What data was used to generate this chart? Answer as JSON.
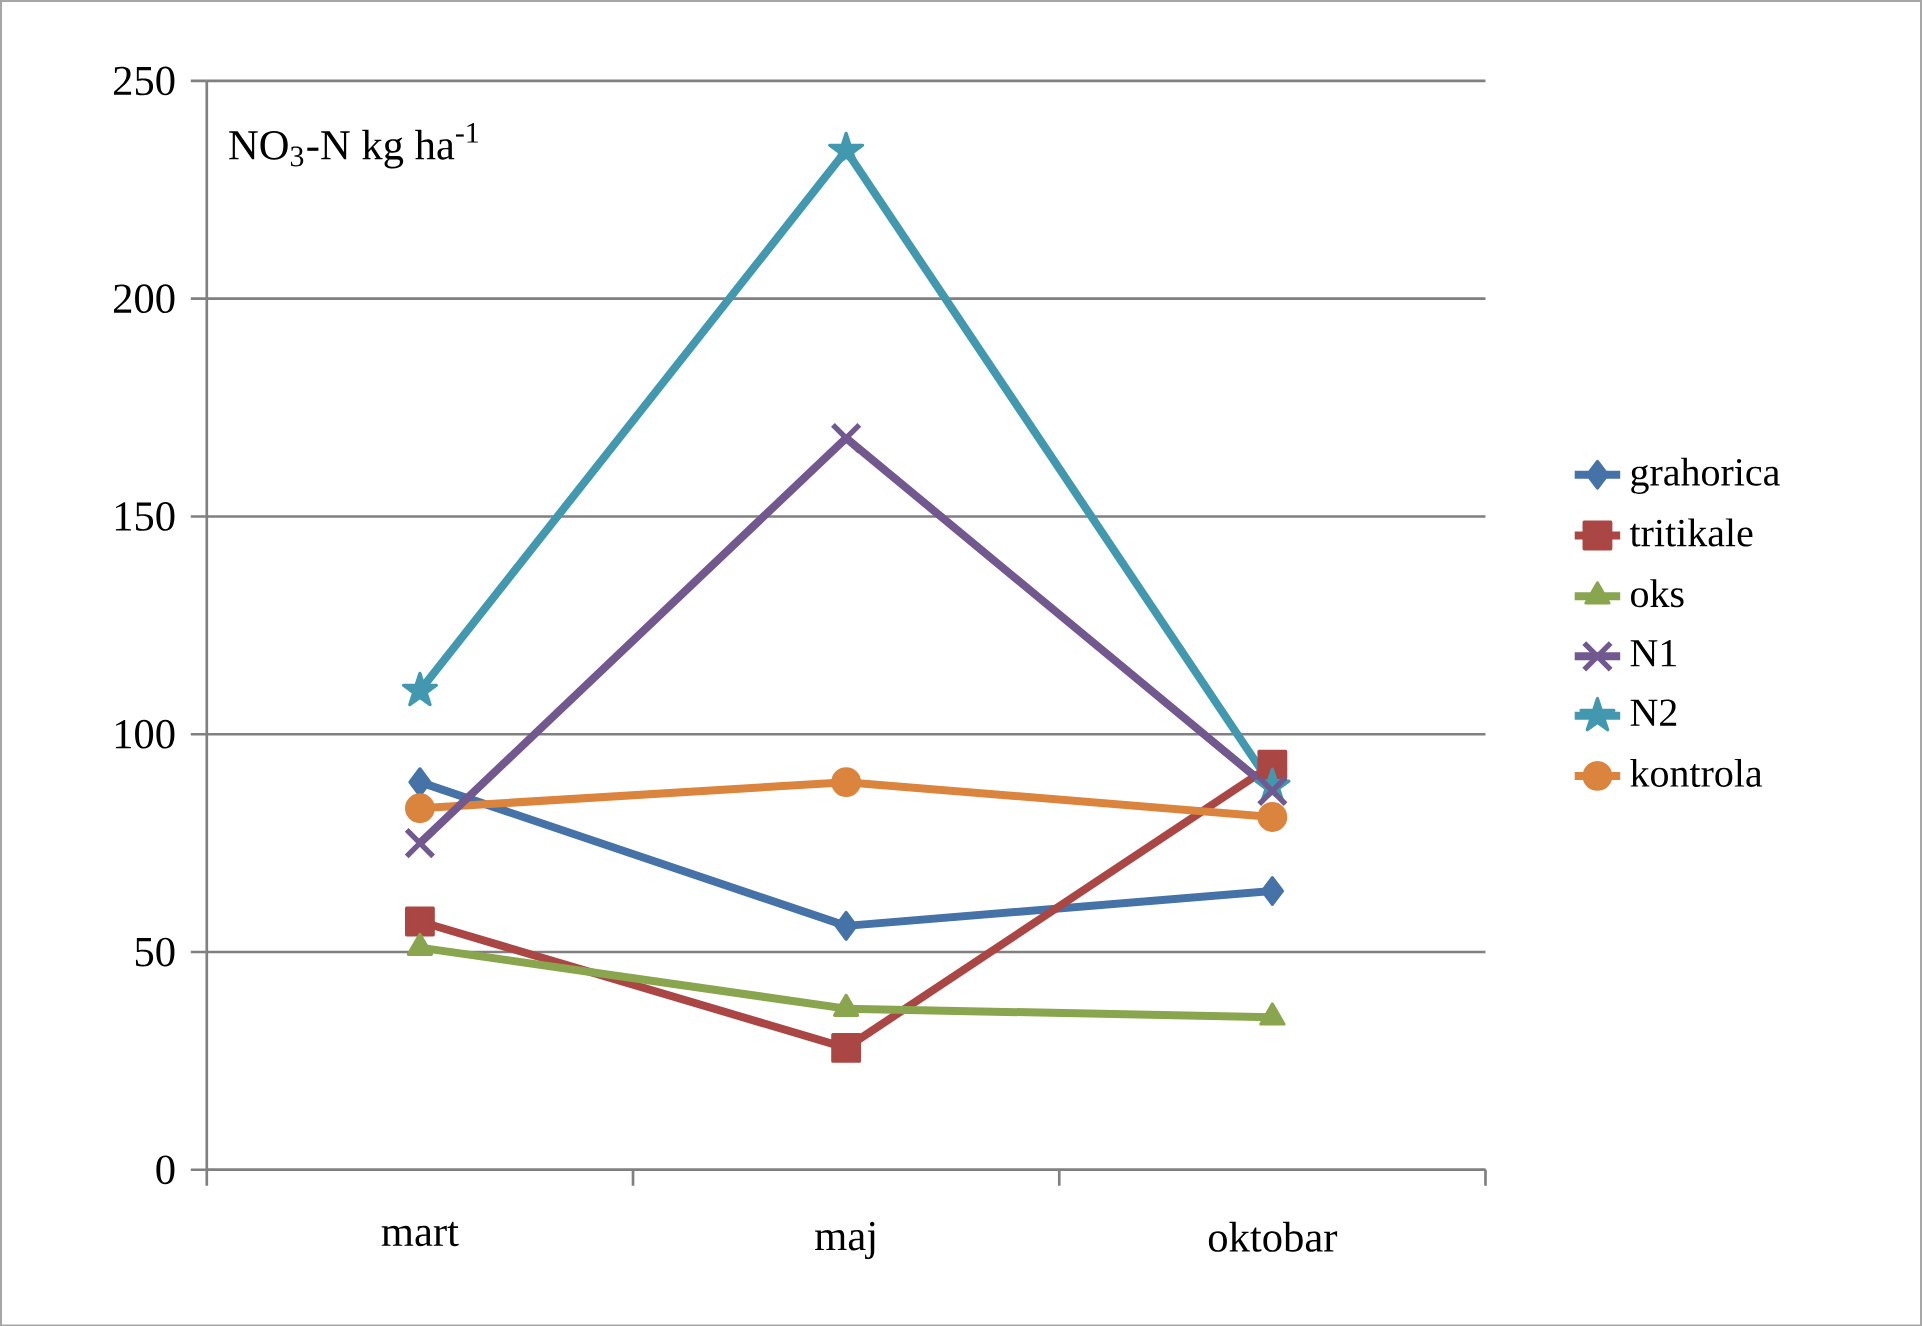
{
  "chart_data": {
    "type": "line",
    "ylabel": "NO$_{3}$-N kg ha$^{-1}$",
    "categories": [
      "mart",
      "maj",
      "oktobar"
    ],
    "ylim": [
      0,
      250
    ],
    "yticks": [
      0,
      50,
      100,
      150,
      200,
      250
    ],
    "grid": "y",
    "legend": "right",
    "series": [
      {
        "name": "grahorica",
        "color": "#4572a7",
        "marker": "diamond",
        "values": [
          89,
          56,
          64
        ]
      },
      {
        "name": "tritikale",
        "color": "#aa4643",
        "marker": "square",
        "values": [
          57,
          28,
          93
        ]
      },
      {
        "name": "oks",
        "color": "#89a54e",
        "marker": "triangle",
        "values": [
          51,
          37,
          35
        ]
      },
      {
        "name": "N1",
        "color": "#71588f",
        "marker": "cross",
        "values": [
          75,
          168,
          87
        ]
      },
      {
        "name": "N2",
        "color": "#4198af",
        "marker": "star",
        "values": [
          110,
          234,
          88
        ]
      },
      {
        "name": "kontrola",
        "color": "#db843d",
        "marker": "circle",
        "values": [
          83,
          89,
          81
        ]
      }
    ]
  }
}
